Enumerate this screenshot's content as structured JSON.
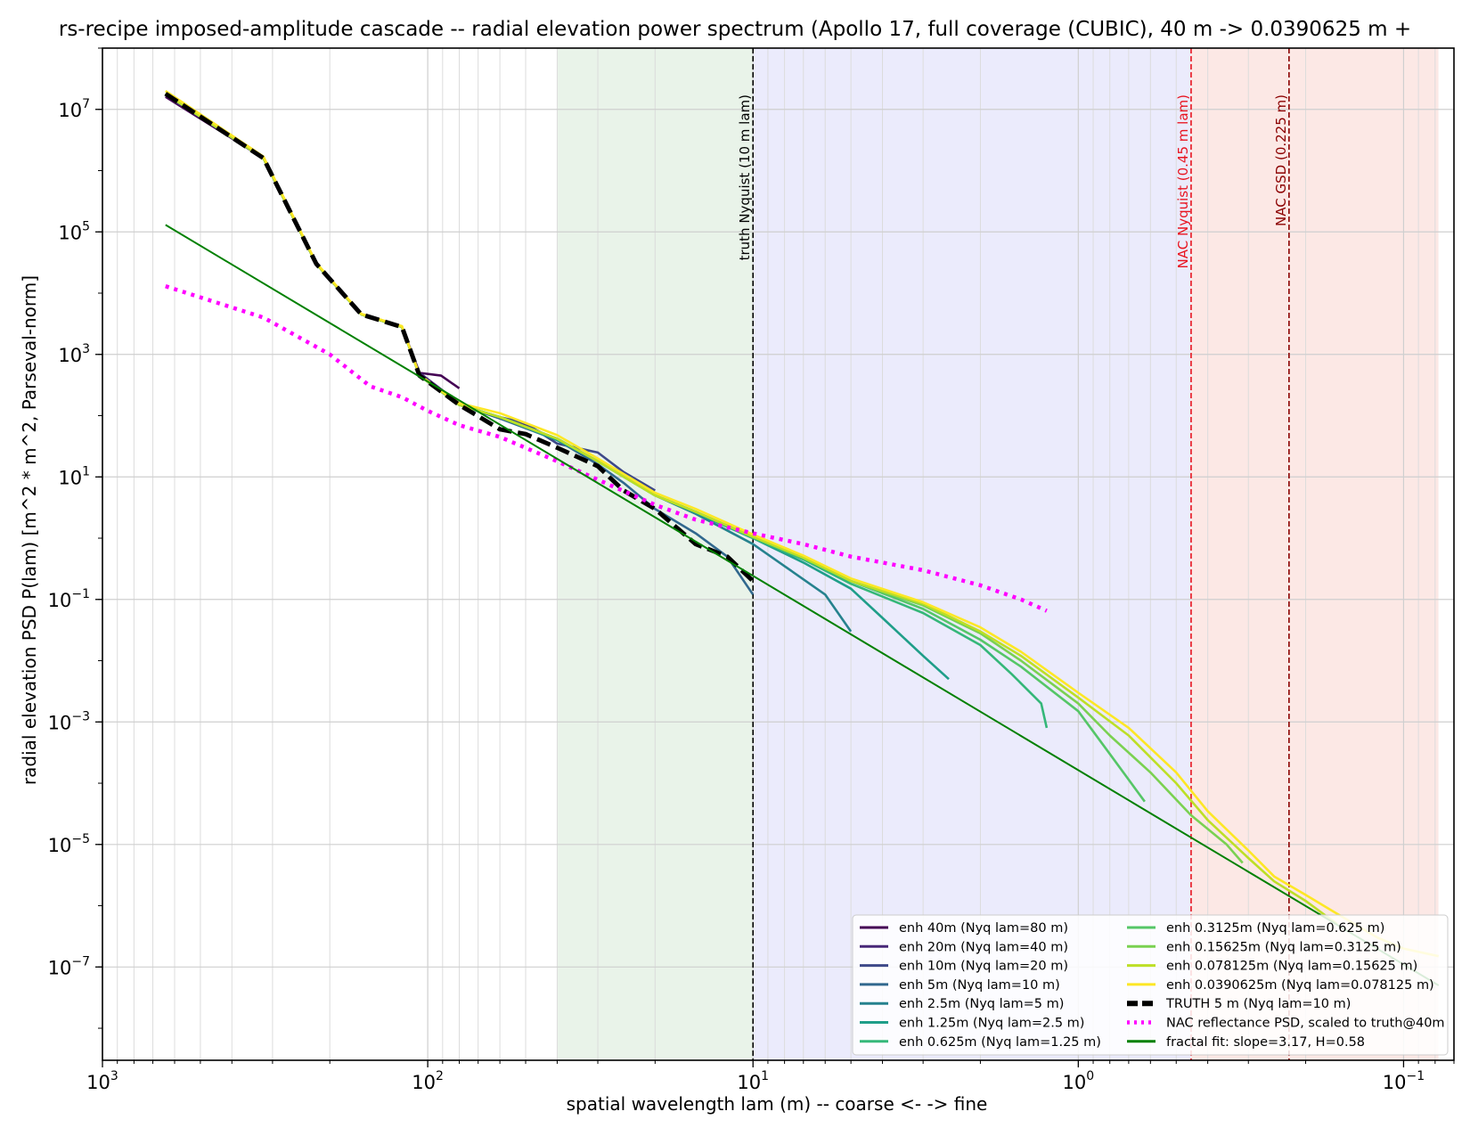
{
  "chart_data": {
    "type": "line",
    "title": "rs-recipe imposed-amplitude cascade -- radial elevation power spectrum (Apollo 17, full coverage (CUBIC), 40 m -> 0.0390625 m +",
    "xlabel": "spatial wavelength lam (m) -- coarse <- -> fine",
    "ylabel": "radial elevation PSD  P(lam)  [m^2 * m^2, Parseval-norm]",
    "x_scale": "log",
    "x_inverted": true,
    "y_scale": "log",
    "xlim": [
      1000,
      0.07
    ],
    "ylim": [
      3e-09,
      100000000.0
    ],
    "grid": true,
    "x_ticks": [
      {
        "value": 1000,
        "mant": "10",
        "exp": "3"
      },
      {
        "value": 100,
        "mant": "10",
        "exp": "2"
      },
      {
        "value": 10,
        "mant": "10",
        "exp": "1"
      },
      {
        "value": 1,
        "mant": "10",
        "exp": "0"
      },
      {
        "value": 0.1,
        "mant": "10",
        "exp": "−1"
      }
    ],
    "y_ticks": [
      {
        "value": 10000000.0,
        "mant": "10",
        "exp": "7"
      },
      {
        "value": 100000.0,
        "mant": "10",
        "exp": "5"
      },
      {
        "value": 1000.0,
        "mant": "10",
        "exp": "3"
      },
      {
        "value": 10,
        "mant": "10",
        "exp": "1"
      },
      {
        "value": 0.1,
        "mant": "10",
        "exp": "−1"
      },
      {
        "value": 0.001,
        "mant": "10",
        "exp": "−3"
      },
      {
        "value": 1e-05,
        "mant": "10",
        "exp": "−5"
      },
      {
        "value": 1e-07,
        "mant": "10",
        "exp": "−7"
      }
    ],
    "bands": [
      {
        "from": 40,
        "to": 10,
        "color": "#e2efe2"
      },
      {
        "from": 10,
        "to": 0.45,
        "color": "#e4e4fb"
      },
      {
        "from": 0.45,
        "to": 0.078125,
        "color": "#fbe0dc"
      }
    ],
    "vlines": [
      {
        "x": 10,
        "label": "truth Nyquist (10 m lam)",
        "color": "#000000"
      },
      {
        "x": 0.45,
        "label": "NAC Nyquist (0.45 m lam)",
        "color": "#e8141e"
      },
      {
        "x": 0.225,
        "label": "NAC GSD (0.225 m)",
        "color": "#8b0000"
      }
    ],
    "legend_position": "lower-right",
    "legend_columns": 2,
    "series": [
      {
        "name": "enh 40m (Nyq lam=80 m)",
        "color": "#440154",
        "style": "solid",
        "x": [
          640,
          320,
          220,
          160,
          120,
          106,
          91,
          80
        ],
        "y": [
          16000000.0,
          1600000.0,
          30000.0,
          4500.0,
          2800.0,
          500,
          450,
          280
        ]
      },
      {
        "name": "enh 20m (Nyq lam=40 m)",
        "color": "#482878",
        "style": "solid",
        "x": [
          640,
          320,
          220,
          160,
          120,
          106,
          80,
          60,
          50,
          40
        ],
        "y": [
          17000000.0,
          1600000.0,
          30000.0,
          4500.0,
          2800.0,
          500,
          160,
          90,
          70,
          40
        ]
      },
      {
        "name": "enh 10m (Nyq lam=20 m)",
        "color": "#3e4989",
        "style": "solid",
        "x": [
          640,
          320,
          220,
          160,
          120,
          106,
          80,
          60,
          50,
          40,
          30,
          25,
          20
        ],
        "y": [
          18000000.0,
          1600000.0,
          30000.0,
          4500.0,
          2800.0,
          450,
          150,
          95,
          75,
          35,
          25,
          12,
          6
        ]
      },
      {
        "name": "enh 5m (Nyq lam=10 m)",
        "color": "#31688e",
        "style": "solid",
        "x": [
          640,
          320,
          220,
          160,
          120,
          106,
          80,
          60,
          40,
          30,
          25,
          20,
          15,
          12,
          10
        ],
        "y": [
          18000000.0,
          1600000.0,
          30000.0,
          4500.0,
          2800.0,
          450,
          150,
          90,
          40,
          16,
          8,
          3,
          1.2,
          0.5,
          0.12
        ]
      },
      {
        "name": "enh 2.5m (Nyq lam=5 m)",
        "color": "#26828e",
        "style": "solid",
        "x": [
          640,
          320,
          220,
          160,
          120,
          106,
          80,
          60,
          40,
          30,
          20,
          15,
          10,
          8,
          6,
          5
        ],
        "y": [
          18000000.0,
          1600000.0,
          30000.0,
          4500.0,
          2800.0,
          450,
          150,
          95,
          40,
          18,
          5,
          2.5,
          0.8,
          0.35,
          0.12,
          0.03
        ]
      },
      {
        "name": "enh 1.25m (Nyq lam=2.5 m)",
        "color": "#1f9e89",
        "style": "solid",
        "x": [
          640,
          320,
          220,
          160,
          120,
          106,
          80,
          60,
          40,
          30,
          20,
          15,
          10,
          7,
          5,
          4,
          3,
          2.5
        ],
        "y": [
          18000000.0,
          1600000.0,
          30000.0,
          4500.0,
          2800.0,
          450,
          150,
          95,
          40,
          18,
          5,
          2.6,
          1.0,
          0.4,
          0.15,
          0.05,
          0.012,
          0.005
        ]
      },
      {
        "name": "enh 0.625m (Nyq lam=1.25 m)",
        "color": "#35b779",
        "style": "solid",
        "x": [
          640,
          320,
          220,
          160,
          120,
          106,
          80,
          60,
          40,
          30,
          20,
          15,
          10,
          7,
          5,
          3,
          2,
          1.6,
          1.3,
          1.25
        ],
        "y": [
          18000000.0,
          1600000.0,
          30000.0,
          4500.0,
          2800.0,
          450,
          150,
          95,
          42,
          18,
          5,
          2.7,
          1.0,
          0.45,
          0.18,
          0.06,
          0.018,
          0.006,
          0.002,
          0.0008
        ]
      },
      {
        "name": "enh 0.3125m (Nyq lam=0.625 m)",
        "color": "#55c667",
        "style": "solid",
        "x": [
          640,
          320,
          220,
          160,
          120,
          106,
          80,
          60,
          40,
          30,
          20,
          15,
          10,
          7,
          5,
          3,
          2,
          1.5,
          1,
          0.8,
          0.625
        ],
        "y": [
          18000000.0,
          1600000.0,
          30000.0,
          4500.0,
          2800.0,
          450,
          150,
          95,
          42,
          18,
          5,
          2.7,
          1.05,
          0.47,
          0.2,
          0.07,
          0.022,
          0.008,
          0.0015,
          0.0003,
          5e-05
        ]
      },
      {
        "name": "enh 0.15625m (Nyq lam=0.3125 m)",
        "color": "#7ad151",
        "style": "solid",
        "x": [
          640,
          320,
          220,
          160,
          120,
          106,
          80,
          60,
          40,
          30,
          20,
          15,
          10,
          7,
          5,
          3,
          2,
          1.5,
          1,
          0.8,
          0.6,
          0.45,
          0.35,
          0.3125
        ],
        "y": [
          18000000.0,
          1600000.0,
          30000.0,
          4500.0,
          2800.0,
          450,
          150,
          95,
          42,
          18,
          5,
          2.7,
          1.05,
          0.48,
          0.2,
          0.08,
          0.028,
          0.01,
          0.002,
          0.0006,
          0.00015,
          3e-05,
          1e-05,
          5e-06
        ]
      },
      {
        "name": "enh 0.078125m (Nyq lam=0.15625 m)",
        "color": "#bddf26",
        "style": "solid",
        "x": [
          640,
          320,
          220,
          160,
          120,
          106,
          80,
          60,
          40,
          30,
          20,
          15,
          10,
          7,
          5,
          3,
          2,
          1.5,
          1,
          0.7,
          0.5,
          0.4,
          0.3,
          0.25,
          0.2,
          0.16
        ],
        "y": [
          18000000.0,
          1600000.0,
          30000.0,
          4500.0,
          2800.0,
          450,
          150,
          95,
          42,
          18,
          5,
          2.7,
          1.05,
          0.48,
          0.2,
          0.085,
          0.03,
          0.012,
          0.0025,
          0.0006,
          0.0001,
          2.5e-05,
          6e-06,
          2.5e-06,
          1.2e-06,
          5e-07
        ]
      },
      {
        "name": "enh 0.0390625m (Nyq lam=0.078125 m)",
        "color": "#fde725",
        "style": "solid",
        "x": [
          640,
          320,
          220,
          160,
          120,
          106,
          80,
          60,
          40,
          30,
          20,
          15,
          10,
          7,
          5,
          3,
          2,
          1.5,
          1,
          0.7,
          0.5,
          0.4,
          0.3,
          0.25,
          0.2,
          0.15,
          0.12,
          0.1,
          0.078
        ],
        "y": [
          20000000.0,
          1700000.0,
          31000.0,
          4600.0,
          2900.0,
          460,
          160,
          110,
          48,
          20,
          5.5,
          3.0,
          1.15,
          0.52,
          0.22,
          0.09,
          0.035,
          0.014,
          0.003,
          0.0008,
          0.00015,
          3.5e-05,
          8e-06,
          3e-06,
          1.5e-06,
          6e-07,
          3e-07,
          2e-07,
          1.5e-07
        ]
      },
      {
        "name": "TRUTH 5 m (Nyq lam=10 m)",
        "color": "#000000",
        "style": "dashed",
        "x": [
          640,
          320,
          220,
          160,
          120,
          106,
          80,
          60,
          50,
          40,
          30,
          25,
          20,
          15,
          12,
          10
        ],
        "y": [
          18000000.0,
          1600000.0,
          30000.0,
          4500.0,
          2800.0,
          450,
          150,
          60,
          50,
          30,
          15,
          6,
          3,
          0.8,
          0.5,
          0.2
        ]
      },
      {
        "name": "NAC reflectance PSD, scaled to truth@40m",
        "color": "#ff00ff",
        "style": "dotted",
        "x": [
          640,
          320,
          200,
          150,
          120,
          100,
          80,
          60,
          40,
          30,
          20,
          15,
          10,
          7,
          5,
          3,
          2,
          1.5,
          1.25
        ],
        "y": [
          13000.0,
          4000.0,
          1000.0,
          300,
          200,
          120,
          70,
          45,
          18,
          9,
          3.5,
          2,
          1.2,
          0.8,
          0.5,
          0.3,
          0.17,
          0.1,
          0.065
        ]
      },
      {
        "name": "fractal fit: slope=3.17, H=0.58",
        "color": "#008000",
        "style": "solid",
        "x": [
          640,
          0.078
        ],
        "y": [
          130000.0,
          5e-08
        ]
      }
    ]
  }
}
